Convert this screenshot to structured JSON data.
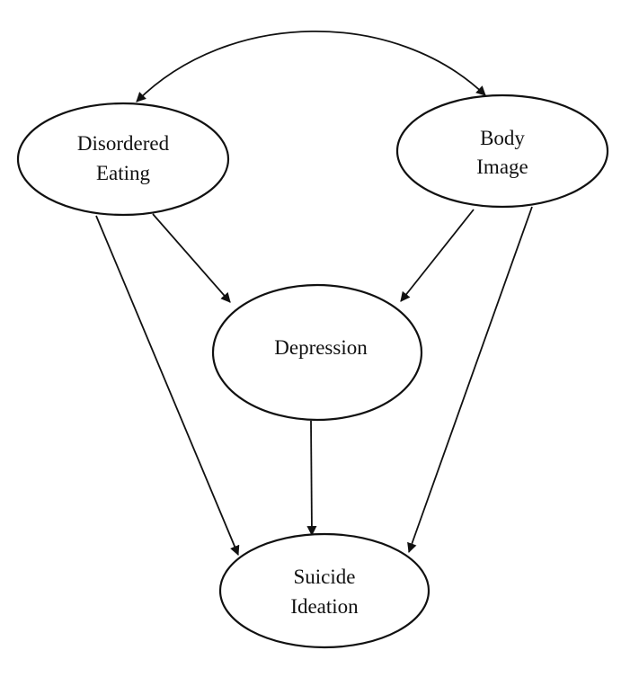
{
  "diagram": {
    "nodes": {
      "disordered_eating": {
        "line1": "Disordered",
        "line2": "Eating"
      },
      "body_image": {
        "line1": "Body",
        "line2": "Image"
      },
      "depression": {
        "line1": "Depression"
      },
      "suicide_ideation": {
        "line1": "Suicide",
        "line2": "Ideation"
      }
    },
    "edges": [
      {
        "from": "Disordered Eating",
        "to": "Body Image",
        "direction": "bidirectional"
      },
      {
        "from": "Disordered Eating",
        "to": "Depression"
      },
      {
        "from": "Body Image",
        "to": "Depression"
      },
      {
        "from": "Disordered Eating",
        "to": "Suicide Ideation"
      },
      {
        "from": "Body Image",
        "to": "Suicide Ideation"
      },
      {
        "from": "Depression",
        "to": "Suicide Ideation"
      }
    ],
    "colors": {
      "stroke": "#111111",
      "background": "#ffffff"
    }
  }
}
